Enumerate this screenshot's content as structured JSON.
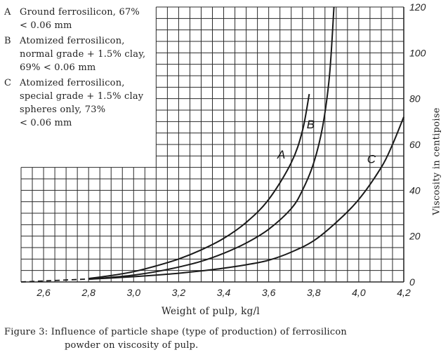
{
  "chart_data": {
    "type": "line",
    "xlabel": "Weight of pulp, kg/l",
    "ylabel": "Viscosity in centipoise",
    "xlim": [
      2.5,
      4.2
    ],
    "ylim": [
      0,
      120
    ],
    "x_ticks": [
      "2,6",
      "2,8",
      "3,0",
      "3,2",
      "3,4",
      "3,6",
      "3,8",
      "4,0",
      "4,2"
    ],
    "y_ticks": [
      "0",
      "20",
      "40",
      "60",
      "80",
      "100",
      "120"
    ],
    "grid": true,
    "series": [
      {
        "name": "A",
        "x": [
          2.8,
          2.9,
          3.0,
          3.1,
          3.2,
          3.3,
          3.4,
          3.5,
          3.6,
          3.7,
          3.75,
          3.78
        ],
        "y": [
          1.5,
          2.8,
          4.5,
          7,
          10,
          14,
          19,
          26,
          36,
          52,
          66,
          82
        ]
      },
      {
        "name": "B",
        "x": [
          2.8,
          2.9,
          3.0,
          3.1,
          3.2,
          3.3,
          3.4,
          3.5,
          3.6,
          3.7,
          3.75,
          3.8,
          3.84,
          3.87,
          3.89
        ],
        "y": [
          1.2,
          2,
          3,
          4.5,
          6.5,
          9,
          12.5,
          17,
          23,
          32,
          40,
          52,
          68,
          90,
          120
        ]
      },
      {
        "name": "C",
        "x": [
          2.8,
          2.9,
          3.0,
          3.1,
          3.2,
          3.3,
          3.4,
          3.5,
          3.6,
          3.7,
          3.8,
          3.9,
          4.0,
          4.1,
          4.15,
          4.2
        ],
        "y": [
          1.2,
          1.7,
          2.3,
          3,
          3.8,
          4.8,
          6,
          7.5,
          9.5,
          13,
          18,
          26,
          36,
          50,
          60,
          72
        ]
      }
    ],
    "dashed_segment": {
      "x": [
        2.5,
        2.8
      ],
      "y": [
        0,
        1.3
      ]
    },
    "legend": [
      {
        "key": "A",
        "lines": [
          "Ground ferrosilicon, 67%",
          "< 0.06 mm"
        ]
      },
      {
        "key": "B",
        "lines": [
          "Atomized ferrosilicon,",
          "normal grade + 1.5% clay,",
          "69% < 0.06 mm"
        ]
      },
      {
        "key": "C",
        "lines": [
          "Atomized ferrosilicon,",
          "special grade + 1.5% clay",
          "spheres only, 73%",
          "< 0.06 mm"
        ]
      }
    ]
  },
  "caption": {
    "line1": "Figure 3: Influence of particle shape (type of production) of ferrosilicon",
    "line2": "powder on viscosity of pulp."
  }
}
